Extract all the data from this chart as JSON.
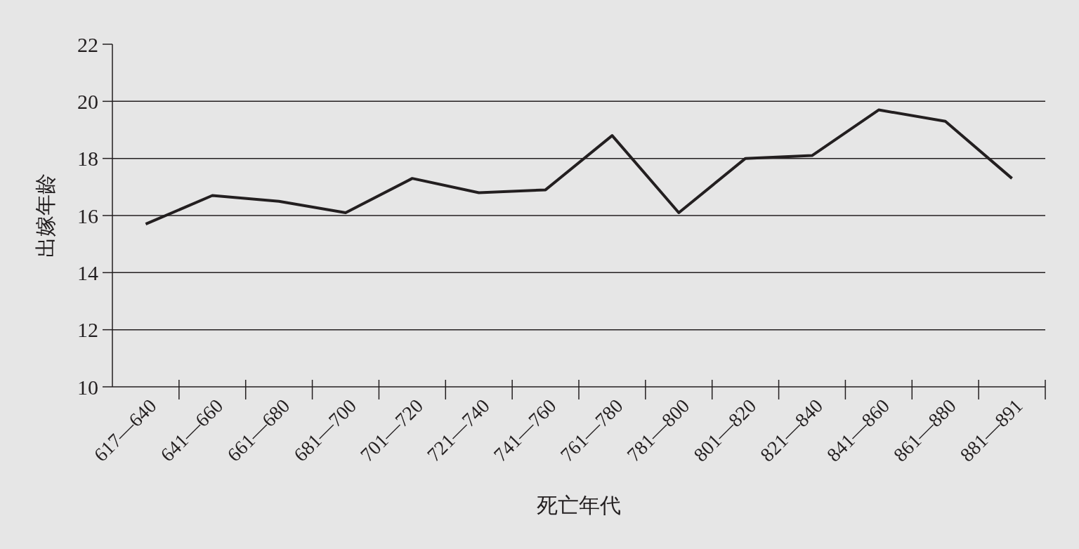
{
  "chart_data": {
    "type": "line",
    "xlabel": "死亡年代",
    "ylabel": "出嫁年龄",
    "categories": [
      "617—640",
      "641—660",
      "661—680",
      "681—700",
      "701—720",
      "721—740",
      "741—760",
      "761—780",
      "781—800",
      "801—820",
      "821—840",
      "841—860",
      "861—880",
      "881—891"
    ],
    "series": [
      {
        "color": "#231f20",
        "values": [
          15.7,
          16.7,
          16.5,
          16.1,
          17.3,
          16.8,
          16.9,
          18.8,
          16.1,
          18.0,
          18.1,
          19.7,
          19.3,
          17.3
        ]
      }
    ],
    "ylim": [
      10,
      22
    ],
    "yticks": [
      10,
      12,
      14,
      16,
      18,
      20,
      22
    ],
    "grid": "y",
    "line_style": "solid"
  }
}
